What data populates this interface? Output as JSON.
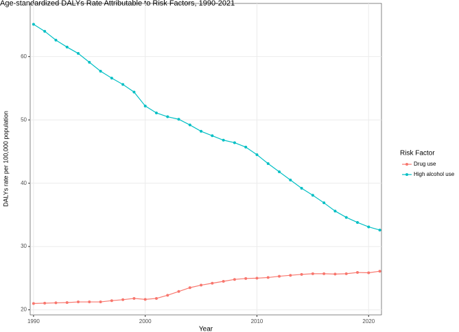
{
  "chart_data": {
    "type": "line",
    "title": "Age-standardized DALYs Rate Attributable to Risk Factors, 1990-2021",
    "x_label": "Year",
    "y_label": "DALYs rate per 100,000 population",
    "legend_title": "Risk Factor",
    "legend_position": "right",
    "grid": true,
    "x": [
      1990,
      1991,
      1992,
      1993,
      1994,
      1995,
      1996,
      1997,
      1998,
      1999,
      2000,
      2001,
      2002,
      2003,
      2004,
      2005,
      2006,
      2007,
      2008,
      2009,
      2010,
      2011,
      2012,
      2013,
      2014,
      2015,
      2016,
      2017,
      2018,
      2019,
      2020,
      2021
    ],
    "xlim": [
      1989.7,
      2021.15
    ],
    "xticks": [
      1990,
      2000,
      2010,
      2020
    ],
    "ylim": [
      19.2,
      68.4
    ],
    "yticks": [
      20,
      30,
      40,
      50,
      60
    ],
    "series": [
      {
        "name": "Drug use",
        "color": "#F8766D",
        "values": [
          21.0,
          21.05,
          21.1,
          21.15,
          21.25,
          21.25,
          21.25,
          21.45,
          21.6,
          21.8,
          21.65,
          21.8,
          22.3,
          22.9,
          23.5,
          23.9,
          24.2,
          24.5,
          24.8,
          24.95,
          25.0,
          25.1,
          25.3,
          25.45,
          25.6,
          25.7,
          25.7,
          25.65,
          25.7,
          25.9,
          25.85,
          26.1
        ]
      },
      {
        "name": "High alcohol use",
        "color": "#00BFC4",
        "values": [
          65.1,
          64.0,
          62.6,
          61.5,
          60.5,
          59.1,
          57.7,
          56.6,
          55.6,
          54.4,
          52.2,
          51.1,
          50.5,
          50.1,
          49.2,
          48.2,
          47.5,
          46.8,
          46.4,
          45.7,
          44.5,
          43.1,
          41.8,
          40.5,
          39.2,
          38.1,
          36.9,
          35.6,
          34.6,
          33.8,
          33.1,
          32.6
        ]
      }
    ]
  }
}
